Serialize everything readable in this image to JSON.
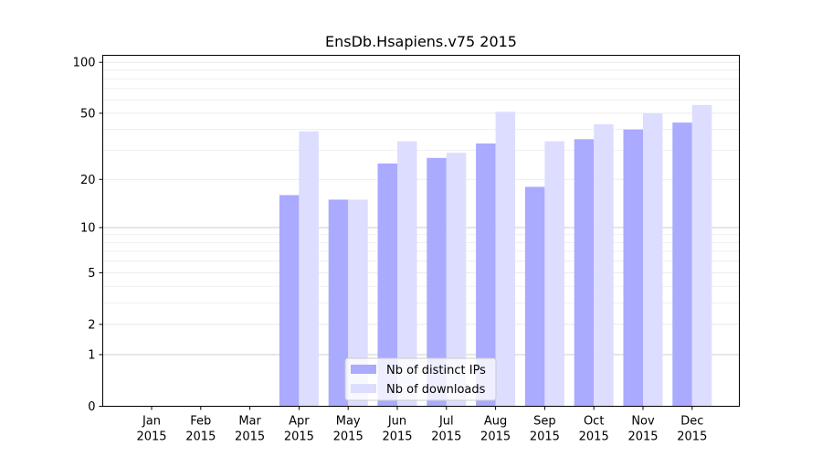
{
  "chart_data": {
    "type": "bar",
    "title": "EnsDb.Hsapiens.v75 2015",
    "xlabel": "",
    "ylabel": "",
    "scale": "log1p",
    "yticks": [
      0,
      1,
      2,
      5,
      10,
      20,
      50,
      100
    ],
    "ytick_labels": [
      "0",
      "1",
      "2",
      "5",
      "10",
      "20",
      "50",
      "100"
    ],
    "ylim": [
      0,
      110
    ],
    "grid": true,
    "legend_position": "bottom-center",
    "categories": [
      [
        "Jan",
        "2015"
      ],
      [
        "Feb",
        "2015"
      ],
      [
        "Mar",
        "2015"
      ],
      [
        "Apr",
        "2015"
      ],
      [
        "May",
        "2015"
      ],
      [
        "Jun",
        "2015"
      ],
      [
        "Jul",
        "2015"
      ],
      [
        "Aug",
        "2015"
      ],
      [
        "Sep",
        "2015"
      ],
      [
        "Oct",
        "2015"
      ],
      [
        "Nov",
        "2015"
      ],
      [
        "Dec",
        "2015"
      ]
    ],
    "series": [
      {
        "name": "Nb of distinct IPs",
        "color": "#aaaaff",
        "values": [
          0,
          0,
          0,
          16,
          15,
          25,
          27,
          33,
          18,
          35,
          40,
          44
        ]
      },
      {
        "name": "Nb of downloads",
        "color": "#ddddff",
        "values": [
          0,
          0,
          0,
          39,
          15,
          34,
          29,
          51,
          34,
          43,
          50,
          56
        ]
      }
    ]
  }
}
